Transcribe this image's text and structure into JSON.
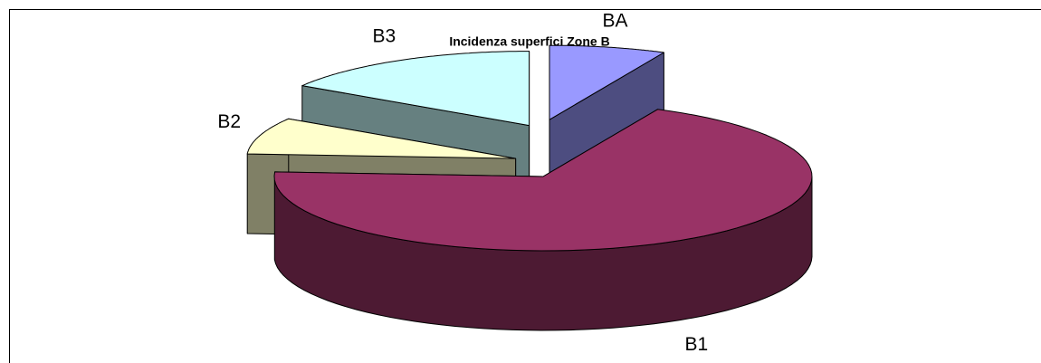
{
  "chart_data": {
    "type": "pie",
    "title": "Incidenza superfici Zone B",
    "categories": [
      "BA",
      "B1",
      "B2",
      "B3"
    ],
    "values": [
      7,
      69,
      8,
      16
    ],
    "colors": [
      "#9999ff",
      "#993366",
      "#ffffcc",
      "#ccffff"
    ],
    "side_colors": [
      "#4d4d80",
      "#4d1a33",
      "#808066",
      "#668080"
    ],
    "explode": [
      1,
      0,
      1,
      1
    ]
  }
}
